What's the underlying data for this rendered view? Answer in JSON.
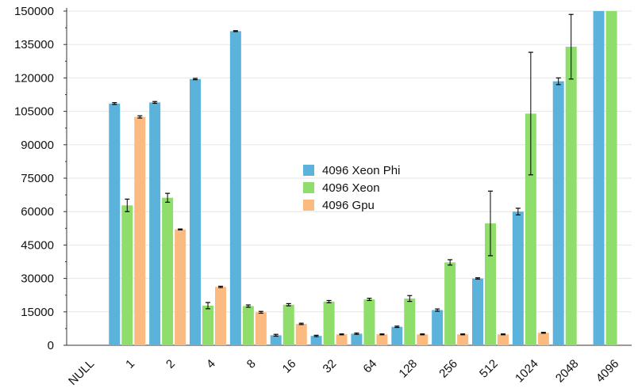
{
  "chart_data": {
    "type": "bar",
    "categories": [
      "NULL",
      "1",
      "2",
      "4",
      "8",
      "16",
      "32",
      "64",
      "128",
      "256",
      "512",
      "1024",
      "2048",
      "4096"
    ],
    "ylim": [
      0,
      150000
    ],
    "yticks": [
      0,
      15000,
      30000,
      45000,
      60000,
      75000,
      90000,
      105000,
      120000,
      135000,
      150000
    ],
    "grid": true,
    "legend_position": "center",
    "series": [
      {
        "name": "4096 Xeon Phi",
        "color": "#5bb3dc",
        "values": [
          null,
          108500,
          109000,
          119500,
          141000,
          4500,
          4200,
          5200,
          8300,
          15800,
          30000,
          60000,
          118500,
          150000
        ],
        "errors": [
          null,
          400,
          400,
          300,
          200,
          400,
          300,
          300,
          300,
          500,
          300,
          1500,
          1500,
          null
        ]
      },
      {
        "name": "4096 Xeon",
        "color": "#8fdd6a",
        "values": [
          null,
          62800,
          66200,
          17800,
          17600,
          18200,
          19600,
          20600,
          21000,
          37200,
          54700,
          104000,
          134000,
          150000
        ],
        "errors": [
          null,
          2800,
          2000,
          1400,
          500,
          500,
          500,
          500,
          1300,
          1200,
          14500,
          27500,
          14500,
          null
        ]
      },
      {
        "name": "4096 Gpu",
        "color": "#fbbb80",
        "values": [
          null,
          102500,
          52000,
          26200,
          14800,
          9600,
          4900,
          4900,
          4900,
          4900,
          4900,
          5600,
          null,
          null
        ],
        "errors": [
          null,
          500,
          200,
          300,
          400,
          300,
          200,
          200,
          200,
          200,
          200,
          200,
          null,
          null
        ]
      }
    ]
  }
}
